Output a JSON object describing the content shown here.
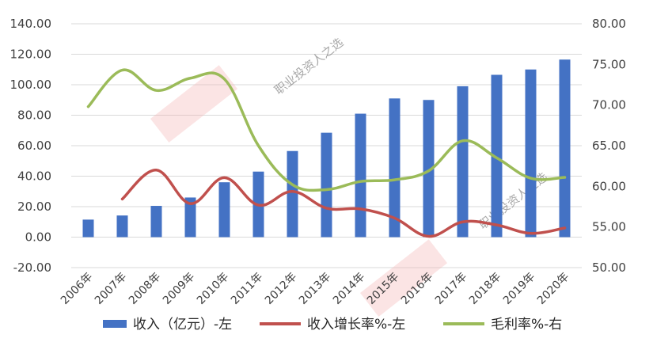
{
  "chart_data": {
    "type": "bar+line",
    "categories": [
      "2006年",
      "2007年",
      "2008年",
      "2009年",
      "2010年",
      "2011年",
      "2012年",
      "2013年",
      "2014年",
      "2015年",
      "2016年",
      "2017年",
      "2018年",
      "2019年",
      "2020年"
    ],
    "series": [
      {
        "name": "收入（亿元）-左",
        "type": "bar",
        "axis": "left",
        "color": "#4472c4",
        "values": [
          11.5,
          14.2,
          20.5,
          26.0,
          36.0,
          43.0,
          56.5,
          68.5,
          81.0,
          91.0,
          90.0,
          99.0,
          106.5,
          110.0,
          116.5
        ]
      },
      {
        "name": "收入增长率%-左",
        "type": "line",
        "axis": "left",
        "color": "#c0504d",
        "values": [
          null,
          25.0,
          44.0,
          22.0,
          39.0,
          21.0,
          30.0,
          19.0,
          18.5,
          12.5,
          0.5,
          10.0,
          8.0,
          2.5,
          6.0
        ]
      },
      {
        "name": "毛利率%-右",
        "type": "line",
        "axis": "right",
        "color": "#9bbb59",
        "values": [
          69.8,
          74.3,
          71.8,
          73.3,
          73.2,
          65.0,
          60.2,
          59.6,
          60.6,
          60.8,
          61.9,
          65.6,
          63.5,
          61.0,
          61.1
        ]
      }
    ],
    "y_left": {
      "ylim": [
        -20,
        140
      ],
      "ticks": [
        "-20.00",
        "0.00",
        "20.00",
        "40.00",
        "60.00",
        "80.00",
        "100.00",
        "120.00",
        "140.00"
      ]
    },
    "y_right": {
      "ylim": [
        50,
        80
      ],
      "ticks": [
        "50.00",
        "55.00",
        "60.00",
        "65.00",
        "70.00",
        "75.00",
        "80.00"
      ]
    },
    "grid": true,
    "legend": "bottom"
  },
  "watermark": {
    "text": "职业投资人之选"
  }
}
